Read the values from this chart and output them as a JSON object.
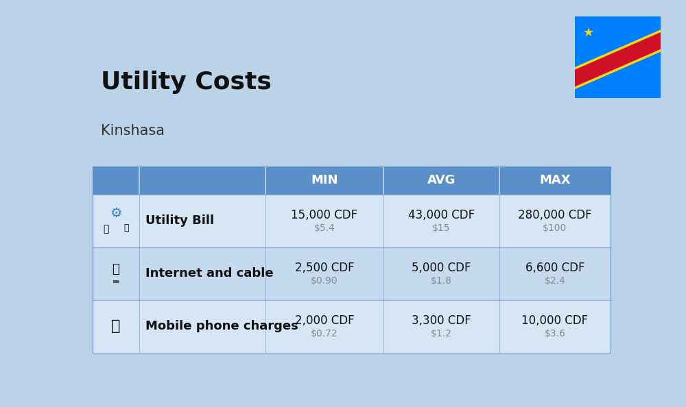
{
  "title": "Utility Costs",
  "subtitle": "Kinshasa",
  "background_color": "#bad3e8",
  "header_bg_color": "#5b8fc9",
  "header_text_color": "#ffffff",
  "row_bg_even": "#d6e6f5",
  "row_bg_odd": "#c5d9ef",
  "divider_color": "#5b8fc9",
  "columns": [
    "",
    "",
    "MIN",
    "AVG",
    "MAX"
  ],
  "rows": [
    {
      "label": "Utility Bill",
      "min_cdf": "15,000 CDF",
      "min_usd": "$5.4",
      "avg_cdf": "43,000 CDF",
      "avg_usd": "$15",
      "max_cdf": "280,000 CDF",
      "max_usd": "$100",
      "icon": "utility"
    },
    {
      "label": "Internet and cable",
      "min_cdf": "2,500 CDF",
      "min_usd": "$0.90",
      "avg_cdf": "5,000 CDF",
      "avg_usd": "$1.8",
      "max_cdf": "6,600 CDF",
      "max_usd": "$2.4",
      "icon": "internet"
    },
    {
      "label": "Mobile phone charges",
      "min_cdf": "2,000 CDF",
      "min_usd": "$0.72",
      "avg_cdf": "3,300 CDF",
      "avg_usd": "$1.2",
      "max_cdf": "10,000 CDF",
      "max_usd": "$3.6",
      "icon": "mobile"
    }
  ],
  "title_fontsize": 26,
  "subtitle_fontsize": 15,
  "header_fontsize": 13,
  "label_fontsize": 13,
  "value_fontsize": 12,
  "usd_fontsize": 10,
  "usd_color": "#8a8a8a",
  "flag_colors": {
    "blue": "#007FFF",
    "red": "#CE1126",
    "yellow": "#F7D618"
  }
}
